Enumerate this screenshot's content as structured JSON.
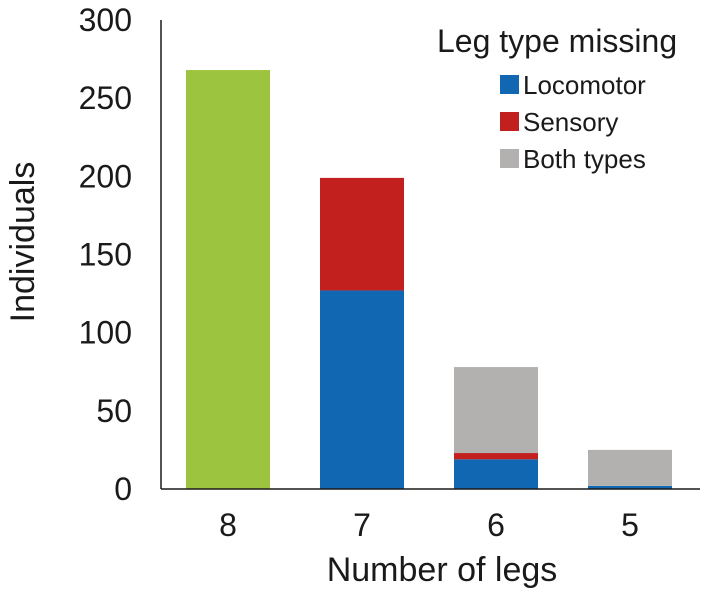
{
  "chart_data": {
    "type": "bar",
    "stacked": true,
    "xlabel": "Number of legs",
    "ylabel": "Individuals",
    "ylim": [
      0,
      300
    ],
    "yticks": [
      "0",
      "50",
      "100",
      "150",
      "200",
      "250",
      "300"
    ],
    "categories": [
      "8",
      "7",
      "6",
      "5"
    ],
    "grid": false,
    "legend": {
      "title": "Leg type missing",
      "position": "top-right",
      "entries": [
        "Locomotor",
        "Sensory",
        "Both types"
      ]
    },
    "intact": {
      "values": [
        268,
        0,
        0,
        0
      ],
      "color": "#9dc43f"
    },
    "series": [
      {
        "name": "Locomotor",
        "values": [
          0,
          127,
          19,
          2
        ],
        "color": "#1167b1"
      },
      {
        "name": "Sensory",
        "values": [
          0,
          72,
          4,
          0
        ],
        "color": "#c1201f"
      },
      {
        "name": "Both types",
        "values": [
          0,
          0,
          55,
          23
        ],
        "color": "#b3b0b0"
      }
    ]
  }
}
